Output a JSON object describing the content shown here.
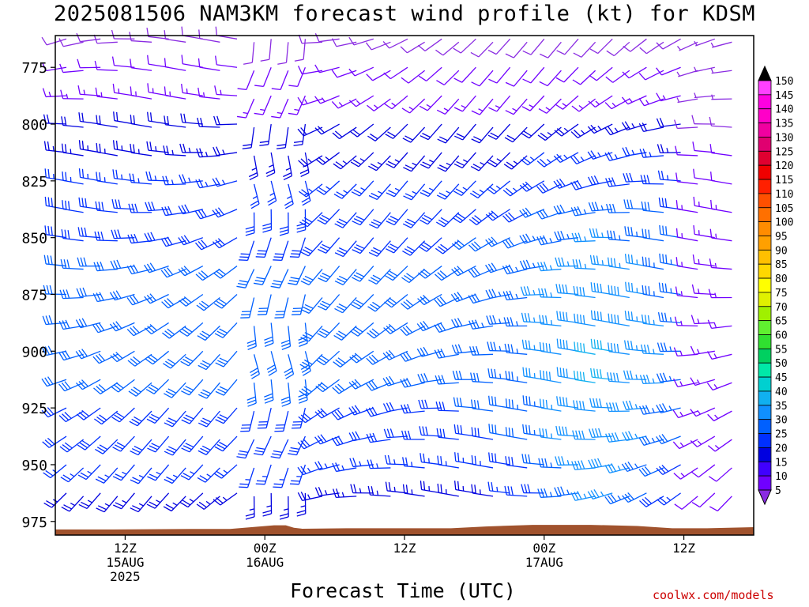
{
  "title": "2025081506 NAM3KM forecast wind profile (kt) for KDSM",
  "xlabel": "Forecast Time (UTC)",
  "credit": "coolwx.com/models",
  "chart_data": {
    "type": "wind-barb-profile",
    "y_ticks": [
      775,
      800,
      825,
      850,
      875,
      900,
      925,
      950,
      975
    ],
    "ylim_hpa": [
      981,
      761
    ],
    "x_ticks": [
      {
        "label": "12Z",
        "sub": [
          "15AUG",
          "2025"
        ],
        "hour": 6
      },
      {
        "label": "00Z",
        "sub": [
          "16AUG"
        ],
        "hour": 18
      },
      {
        "label": "12Z",
        "sub": [],
        "hour": 30
      },
      {
        "label": "00Z",
        "sub": [
          "17AUG"
        ],
        "hour": 42
      },
      {
        "label": "12Z",
        "sub": [],
        "hour": 54
      }
    ],
    "xlim_hours": [
      0,
      60
    ],
    "colorbar": {
      "levels": [
        5,
        10,
        15,
        20,
        25,
        30,
        35,
        40,
        45,
        50,
        55,
        60,
        65,
        70,
        75,
        80,
        85,
        90,
        95,
        100,
        105,
        110,
        115,
        120,
        125,
        130,
        135,
        140,
        145,
        150
      ],
      "colors": [
        "#8a2be2",
        "#7000ff",
        "#4000ff",
        "#0000e0",
        "#0030ff",
        "#0060ff",
        "#1090ff",
        "#10b0f0",
        "#00d0d0",
        "#00e8a8",
        "#00d060",
        "#30e030",
        "#60f030",
        "#a0f000",
        "#e0f000",
        "#ffff00",
        "#ffd800",
        "#ffc000",
        "#ffa000",
        "#ff8c00",
        "#ff7000",
        "#ff5000",
        "#ff2000",
        "#f00000",
        "#e00030",
        "#e00070",
        "#f000a0",
        "#ff00c8",
        "#ff00e0",
        "#ff40ff"
      ]
    },
    "barbs": {
      "speed_kt_range": [
        5,
        45
      ],
      "row_step_hpa": 12.5
    },
    "terrain": {
      "color": "#a0522d",
      "surface_hpa": [
        {
          "hour": 0,
          "p": 978.5
        },
        {
          "hour": 5,
          "p": 978.5
        },
        {
          "hour": 11.7,
          "p": 978.3
        },
        {
          "hour": 15,
          "p": 978.3
        },
        {
          "hour": 18.8,
          "p": 976.7
        },
        {
          "hour": 19.8,
          "p": 976.7
        },
        {
          "hour": 20.5,
          "p": 977.8
        },
        {
          "hour": 21.2,
          "p": 978.2
        },
        {
          "hour": 25,
          "p": 978
        },
        {
          "hour": 34,
          "p": 978
        },
        {
          "hour": 37,
          "p": 977.2
        },
        {
          "hour": 41,
          "p": 976.5
        },
        {
          "hour": 46,
          "p": 976.5
        },
        {
          "hour": 50,
          "p": 977
        },
        {
          "hour": 53,
          "p": 978
        },
        {
          "hour": 56,
          "p": 978
        },
        {
          "hour": 60,
          "p": 977.5
        }
      ]
    }
  }
}
